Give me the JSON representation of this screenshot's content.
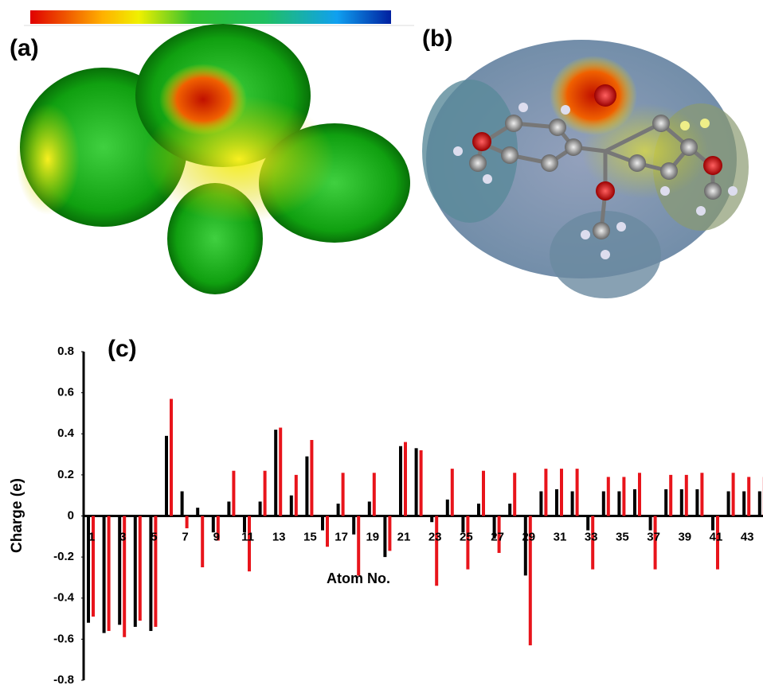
{
  "panel_a_label": "(a)",
  "panel_b_label": "(b)",
  "chart_data": {
    "type": "bar",
    "title": "(c)",
    "y_label": "Charge (e)",
    "x_label": "Atom No.",
    "categories": [
      "1",
      null,
      "3",
      null,
      "5",
      null,
      "7",
      null,
      "9",
      null,
      "11",
      null,
      "13",
      null,
      "15",
      null,
      "17",
      null,
      "19",
      null,
      "21",
      null,
      "23",
      null,
      "25",
      null,
      "27",
      null,
      "29",
      null,
      "31",
      null,
      "33",
      null,
      "35",
      null,
      "37",
      null,
      "39",
      null,
      "41",
      null,
      "43",
      null
    ],
    "series": [
      {
        "color": "#000000",
        "values": [
          -0.52,
          -0.57,
          -0.53,
          -0.54,
          -0.56,
          0.39,
          0.12,
          0.04,
          -0.08,
          0.07,
          -0.08,
          0.07,
          0.42,
          0.1,
          0.29,
          -0.07,
          0.06,
          -0.09,
          0.07,
          -0.2,
          0.34,
          0.33,
          -0.03,
          0.08,
          -0.08,
          0.06,
          -0.11,
          0.06,
          -0.29,
          0.12,
          0.13,
          0.12,
          -0.07,
          0.12,
          0.12,
          0.13,
          -0.07,
          0.13,
          0.13,
          0.13,
          -0.07,
          0.12,
          0.12,
          0.12
        ]
      },
      {
        "color": "#e8141b",
        "values": [
          -0.49,
          -0.56,
          -0.59,
          -0.51,
          -0.54,
          0.57,
          -0.06,
          -0.25,
          -0.12,
          0.22,
          -0.27,
          0.22,
          0.43,
          0.2,
          0.37,
          -0.15,
          0.21,
          -0.29,
          0.21,
          -0.17,
          0.36,
          0.32,
          -0.34,
          0.23,
          -0.26,
          0.22,
          -0.18,
          0.21,
          -0.63,
          0.23,
          0.23,
          0.23,
          -0.26,
          0.19,
          0.19,
          0.21,
          -0.26,
          0.2,
          0.2,
          0.21,
          -0.26,
          0.21,
          0.19,
          0.19
        ]
      }
    ],
    "ylim": [
      -0.8,
      0.8
    ],
    "yticks": [
      -0.8,
      -0.6,
      -0.4,
      -0.2,
      0,
      0.2,
      0.4,
      0.6,
      0.8
    ]
  }
}
